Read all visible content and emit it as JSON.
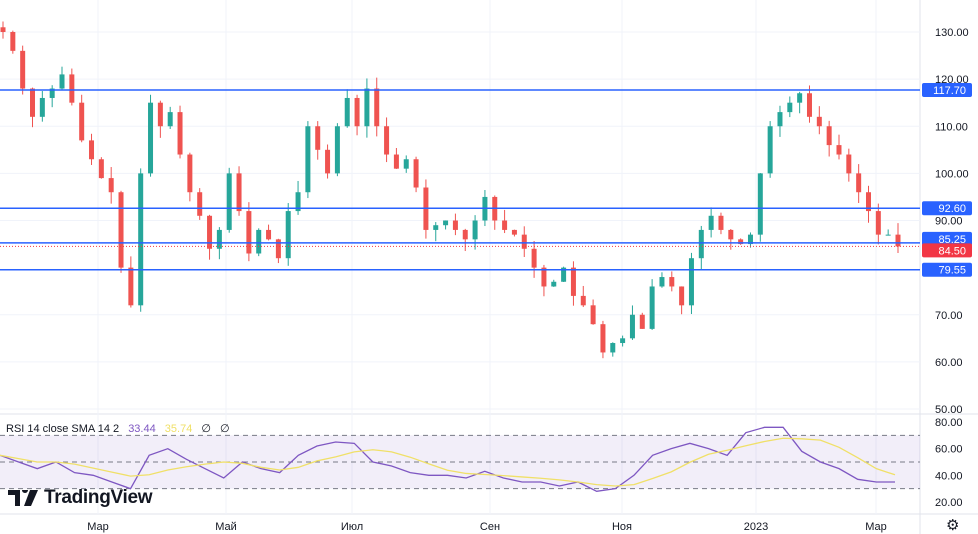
{
  "chart_data": {
    "type": "candlestick",
    "price_axis": {
      "ticks": [
        130,
        120,
        110,
        100,
        90,
        70,
        60,
        50
      ],
      "range": [
        48,
        136
      ]
    },
    "x_tick_labels": [
      "Мар",
      "Май",
      "Июл",
      "Сен",
      "Ноя",
      "2023",
      "Мар"
    ],
    "closes": [
      130,
      126,
      118,
      112,
      116,
      118,
      121,
      115,
      107,
      103,
      99,
      96,
      80,
      72,
      100,
      115,
      110,
      113,
      104,
      96,
      91,
      84,
      88,
      100,
      92,
      83,
      88,
      86,
      82,
      92,
      96,
      110,
      105,
      100,
      110,
      116,
      110,
      118,
      110,
      104,
      101,
      103,
      97,
      88,
      89,
      90,
      88,
      86,
      90,
      95,
      90,
      88,
      87,
      84,
      80,
      76,
      77,
      80,
      74,
      72,
      68,
      62,
      64,
      65,
      70,
      67,
      76,
      78,
      76,
      72,
      82,
      88,
      91,
      88,
      86,
      85,
      87,
      100,
      110,
      113,
      115,
      117,
      112,
      110,
      106,
      104,
      100,
      96,
      92,
      87,
      87,
      84.5
    ],
    "horizontal_lines": [
      {
        "value": 117.7,
        "label": "117.70",
        "color": "#2962ff"
      },
      {
        "value": 92.6,
        "label": "92.60",
        "color": "#2962ff"
      },
      {
        "value": 85.25,
        "label": "85.25",
        "color": "#2962ff"
      },
      {
        "value": 79.55,
        "label": "79.55",
        "color": "#2962ff"
      }
    ],
    "last_price": {
      "value": 84.5,
      "label": "84.50",
      "color": "#f23645"
    },
    "rsi": {
      "title": "RSI 14 close SMA 14 2",
      "rsi_value": "33.44",
      "sma_value": "35.74",
      "extra": [
        "∅",
        "∅"
      ],
      "axis_ticks": [
        80,
        60,
        40,
        20
      ],
      "bands": [
        70,
        50,
        30
      ],
      "range": [
        12,
        86
      ],
      "values": [
        55,
        50,
        45,
        50,
        42,
        40,
        35,
        30,
        55,
        60,
        52,
        45,
        38,
        50,
        45,
        42,
        55,
        62,
        65,
        64,
        50,
        47,
        42,
        40,
        40,
        38,
        43,
        38,
        35,
        35,
        32,
        35,
        28,
        30,
        40,
        55,
        60,
        64,
        60,
        55,
        72,
        76,
        76,
        58,
        50,
        45,
        37,
        35,
        35
      ],
      "rsi_color": "#7e57c2",
      "sma_color": "#f0e068"
    },
    "up_color": "#26a69a",
    "down_color": "#ef5350"
  },
  "branding": {
    "logo": "TradingView"
  },
  "icons": {
    "settings": "gear-icon"
  }
}
